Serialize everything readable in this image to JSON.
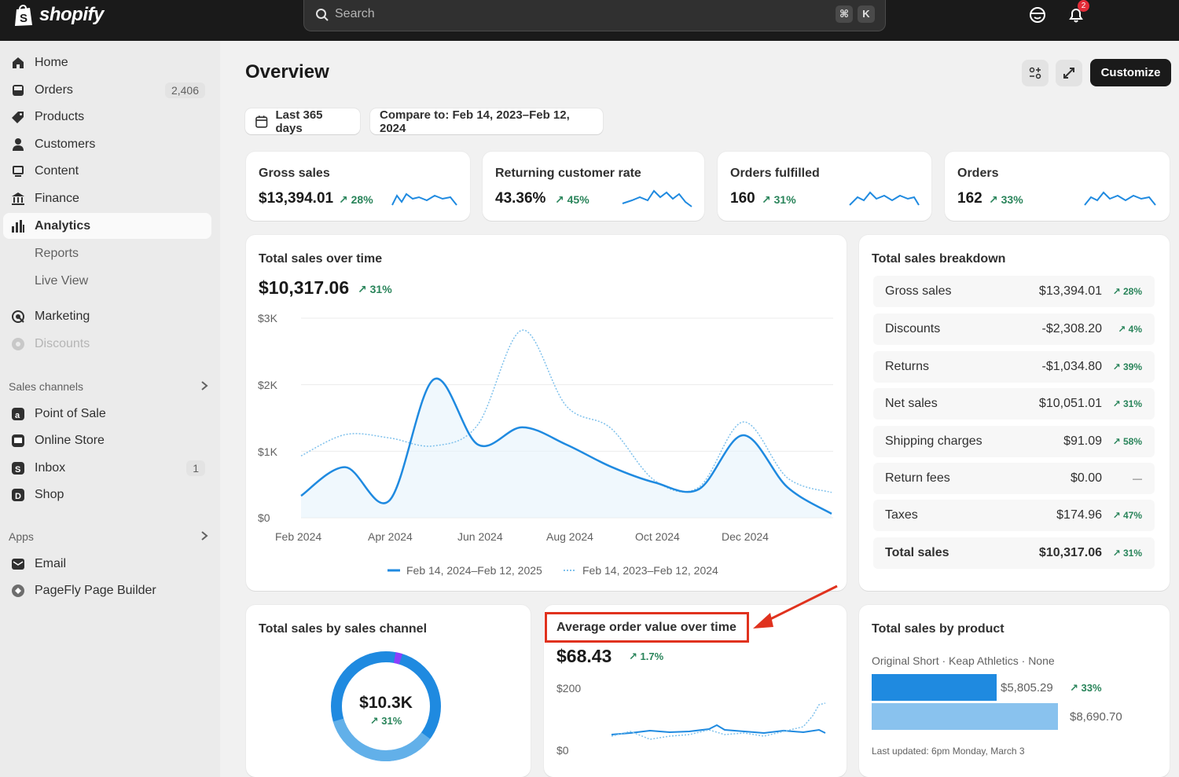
{
  "topbar": {
    "logo_text": "shopify",
    "search_placeholder": "Search",
    "shortcut_keys": [
      "⌘",
      "K"
    ],
    "notification_count": "2",
    "icons": [
      "shopify-bag-icon",
      "search-icon",
      "user-smiley-icon",
      "bell-icon"
    ]
  },
  "sidebar": {
    "items": [
      {
        "label": "Home",
        "icon": "home-icon"
      },
      {
        "label": "Orders",
        "icon": "orders-icon",
        "count": "2,406"
      },
      {
        "label": "Products",
        "icon": "tag-icon"
      },
      {
        "label": "Customers",
        "icon": "person-icon"
      },
      {
        "label": "Content",
        "icon": "content-icon"
      },
      {
        "label": "Finance",
        "icon": "bank-icon"
      },
      {
        "label": "Analytics",
        "icon": "bar-chart-icon"
      },
      {
        "label": "Reports"
      },
      {
        "label": "Live View"
      },
      {
        "label": "Marketing",
        "icon": "target-icon"
      },
      {
        "label": "Discounts",
        "icon": "discount-icon"
      }
    ],
    "sales_channels_label": "Sales channels",
    "channels": [
      {
        "label": "Point of Sale",
        "icon": "pos-icon"
      },
      {
        "label": "Online Store",
        "icon": "store-icon"
      },
      {
        "label": "Inbox",
        "icon": "inbox-icon",
        "count": "1"
      },
      {
        "label": "Shop",
        "icon": "shop-icon"
      }
    ],
    "apps_label": "Apps",
    "apps": [
      {
        "label": "Email",
        "icon": "email-icon"
      },
      {
        "label": "PageFly Page Builder",
        "icon": "pagefly-icon"
      }
    ]
  },
  "header": {
    "title": "Overview",
    "customize_label": "Customize",
    "date_range": "Last 365 days",
    "compare": "Compare to: Feb 14, 2023–Feb 12, 2024"
  },
  "kpis": [
    {
      "title": "Gross sales",
      "value": "$13,394.01",
      "trend": "28%"
    },
    {
      "title": "Returning customer rate",
      "value": "43.36%",
      "trend": "45%"
    },
    {
      "title": "Orders fulfilled",
      "value": "160",
      "trend": "31%"
    },
    {
      "title": "Orders",
      "value": "162",
      "trend": "33%"
    }
  ],
  "sales_over_time": {
    "title": "Total sales over time",
    "value": "$10,317.06",
    "trend": "31%",
    "y_ticks": [
      "$3K",
      "$2K",
      "$1K",
      "$0"
    ],
    "x_ticks": [
      "Feb 2024",
      "Apr 2024",
      "Jun 2024",
      "Aug 2024",
      "Oct 2024",
      "Dec 2024"
    ],
    "legend_current": "Feb 14, 2024–Feb 12, 2025",
    "legend_previous": "Feb 14, 2023–Feb 12, 2024",
    "accent": "#1f8ae0"
  },
  "chart_data": {
    "type": "line",
    "ylim": [
      0,
      3000
    ],
    "x": [
      "Feb 2024",
      "Mar 2024",
      "Apr 2024",
      "May 2024",
      "Jun 2024",
      "Jul 2024",
      "Aug 2024",
      "Sep 2024",
      "Oct 2024",
      "Nov 2024",
      "Dec 2024",
      "Jan 2025",
      "Feb 2025"
    ],
    "series": [
      {
        "name": "Feb 14, 2024–Feb 12, 2025",
        "values": [
          330,
          760,
          260,
          2080,
          1100,
          1360,
          1100,
          770,
          530,
          430,
          1240,
          460,
          60
        ]
      },
      {
        "name": "Feb 14, 2023–Feb 12, 2024",
        "values": [
          930,
          1250,
          1200,
          1080,
          1400,
          2820,
          1680,
          1350,
          560,
          460,
          1440,
          600,
          380
        ]
      }
    ]
  },
  "breakdown": {
    "title": "Total sales breakdown",
    "rows": [
      {
        "label": "Gross sales",
        "value": "$13,394.01",
        "trend": "28%"
      },
      {
        "label": "Discounts",
        "value": "-$2,308.20",
        "trend": "4%"
      },
      {
        "label": "Returns",
        "value": "-$1,034.80",
        "trend": "39%"
      },
      {
        "label": "Net sales",
        "value": "$10,051.01",
        "trend": "31%"
      },
      {
        "label": "Shipping charges",
        "value": "$91.09",
        "trend": "58%"
      },
      {
        "label": "Return fees",
        "value": "$0.00",
        "trend": "—"
      },
      {
        "label": "Taxes",
        "value": "$174.96",
        "trend": "47%"
      },
      {
        "label": "Total sales",
        "value": "$10,317.06",
        "trend": "31%"
      }
    ]
  },
  "by_channel": {
    "title": "Total sales by sales channel",
    "center_value": "$10.3K",
    "center_trend": "31%"
  },
  "aov": {
    "title": "Average order value over time",
    "value": "$68.43",
    "trend": "1.7%",
    "y_ticks": [
      "$200",
      "$0"
    ]
  },
  "by_product": {
    "title": "Total sales by product",
    "product_label": "Original Short · Keap Athletics · None",
    "bar_current": "$5,805.29",
    "bar_current_trend": "33%",
    "bar_previous": "$8,690.70",
    "bar_current_fraction": 0.67,
    "footer": "Last updated: 6pm Monday, March 3"
  }
}
